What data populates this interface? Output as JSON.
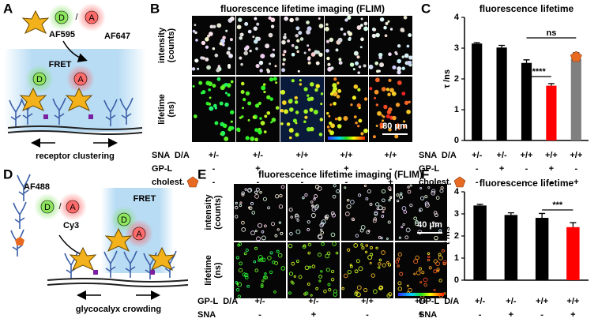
{
  "panel_labels": [
    "A",
    "B",
    "C",
    "D",
    "E",
    "F"
  ],
  "panel_a": {
    "donor_dye": "AF595",
    "acceptor_dye": "AF647",
    "donor": "D",
    "acceptor": "A",
    "separator": "/",
    "fret": "FRET",
    "caption": "receptor clustering"
  },
  "panel_b": {
    "title": "fluorescence lifetime imaging (FLIM)",
    "row_labels": [
      [
        "intensity",
        "(counts)"
      ],
      [
        "lifetime",
        "(ns)"
      ]
    ],
    "scale_bar": "80 μm",
    "conditions": [
      {
        "label": "SNA  D/A",
        "values": [
          "+/-",
          "+/-",
          "+/+",
          "+/+",
          "+/+"
        ]
      },
      {
        "label": "GP-L",
        "values": [
          "-",
          "+",
          "-",
          "+",
          "-"
        ]
      },
      {
        "label": "cholest.",
        "values": [
          "-",
          "-",
          "-",
          "-",
          "+"
        ]
      }
    ]
  },
  "panel_d": {
    "donor_dye": "AF488",
    "acceptor_dye": "Cy3",
    "donor": "D",
    "acceptor": "A",
    "separator": "/",
    "fret": "FRET",
    "caption": "glycocalyx crowding"
  },
  "panel_e": {
    "title": "fluorescence lifetime imaging (FLIM)",
    "row_labels": [
      [
        "intensity",
        "(counts)"
      ],
      [
        "lifetime",
        "(ns)"
      ]
    ],
    "scale_bar": "40 μm",
    "conditions": [
      {
        "label": "GP-L  D/A",
        "values": [
          "+/-",
          "+/-",
          "+/+",
          "+/+"
        ]
      },
      {
        "label": "SNA",
        "values": [
          "-",
          "+",
          "-",
          "+"
        ]
      }
    ]
  },
  "chart_data": [
    {
      "type": "bar",
      "title": "fluorescence lifetime",
      "y_label": "τ /ns",
      "values": [
        3.15,
        3.02,
        2.52,
        1.78,
        2.65
      ],
      "errors": [
        0.03,
        0.07,
        0.1,
        0.07,
        0.2
      ],
      "colors": [
        "#000000",
        "#000000",
        "#000000",
        "#ff0000",
        "#808080"
      ],
      "ylim": [
        0,
        4
      ],
      "yticks": [
        0,
        1,
        2,
        3,
        4
      ],
      "annotations": [
        "****",
        "ns"
      ],
      "conditions": [
        {
          "label": "SNA  D/A",
          "values": [
            "+/-",
            "+/-",
            "+/+",
            "+/+",
            "+/+"
          ]
        },
        {
          "label": "GP-L",
          "values": [
            "-",
            "+",
            "-",
            "+",
            "-"
          ]
        },
        {
          "label": "cholest.",
          "values": [
            "-",
            "-",
            "-",
            "-",
            "+"
          ]
        }
      ]
    },
    {
      "type": "bar",
      "title": "fluorescence lifetime",
      "y_label": "τ /ns",
      "values": [
        3.38,
        2.95,
        2.82,
        2.4
      ],
      "errors": [
        0.05,
        0.1,
        0.2,
        0.2
      ],
      "colors": [
        "#000000",
        "#000000",
        "#000000",
        "#ff0000"
      ],
      "ylim": [
        0,
        4
      ],
      "yticks": [
        0,
        1,
        2,
        3,
        4
      ],
      "annotations": [
        "***"
      ],
      "conditions": [
        {
          "label": "GP-L  D/A",
          "values": [
            "+/-",
            "+/-",
            "+/+",
            "+/+"
          ]
        },
        {
          "label": "SNA",
          "values": [
            "-",
            "+",
            "-",
            "+"
          ]
        }
      ]
    }
  ]
}
